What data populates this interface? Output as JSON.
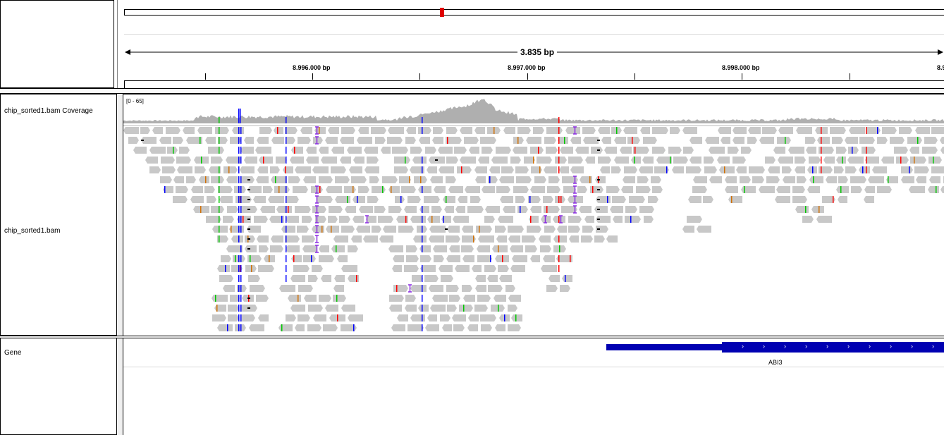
{
  "ruler": {
    "span_label": "3.835 bp",
    "ticks": [
      {
        "label": "8.996.000 bp"
      },
      {
        "label": "8.997.000 bp"
      },
      {
        "label": "8.998.000 bp"
      },
      {
        "label": "8.9"
      }
    ]
  },
  "tracks": {
    "coverage": {
      "name": "chip_sorted1.bam Coverage",
      "range": "[0 - 65]"
    },
    "alignment": {
      "name": "chip_sorted1.bam"
    },
    "gene": {
      "name": "Gene",
      "feature_label": "ABI3",
      "strand": "+"
    }
  },
  "colors": {
    "read": "#c8c8c8",
    "coverage": "#afafaf",
    "gene": "#0000b2",
    "ideogram_marker": "#e00000",
    "mismatch_a": "#00c800",
    "mismatch_c": "#0000ff",
    "mismatch_g": "#d17105",
    "mismatch_t": "#ff0000",
    "insertion": "#8a2be2"
  },
  "icons": [
    "chevron-right-icon",
    "double-arrow-icon"
  ]
}
